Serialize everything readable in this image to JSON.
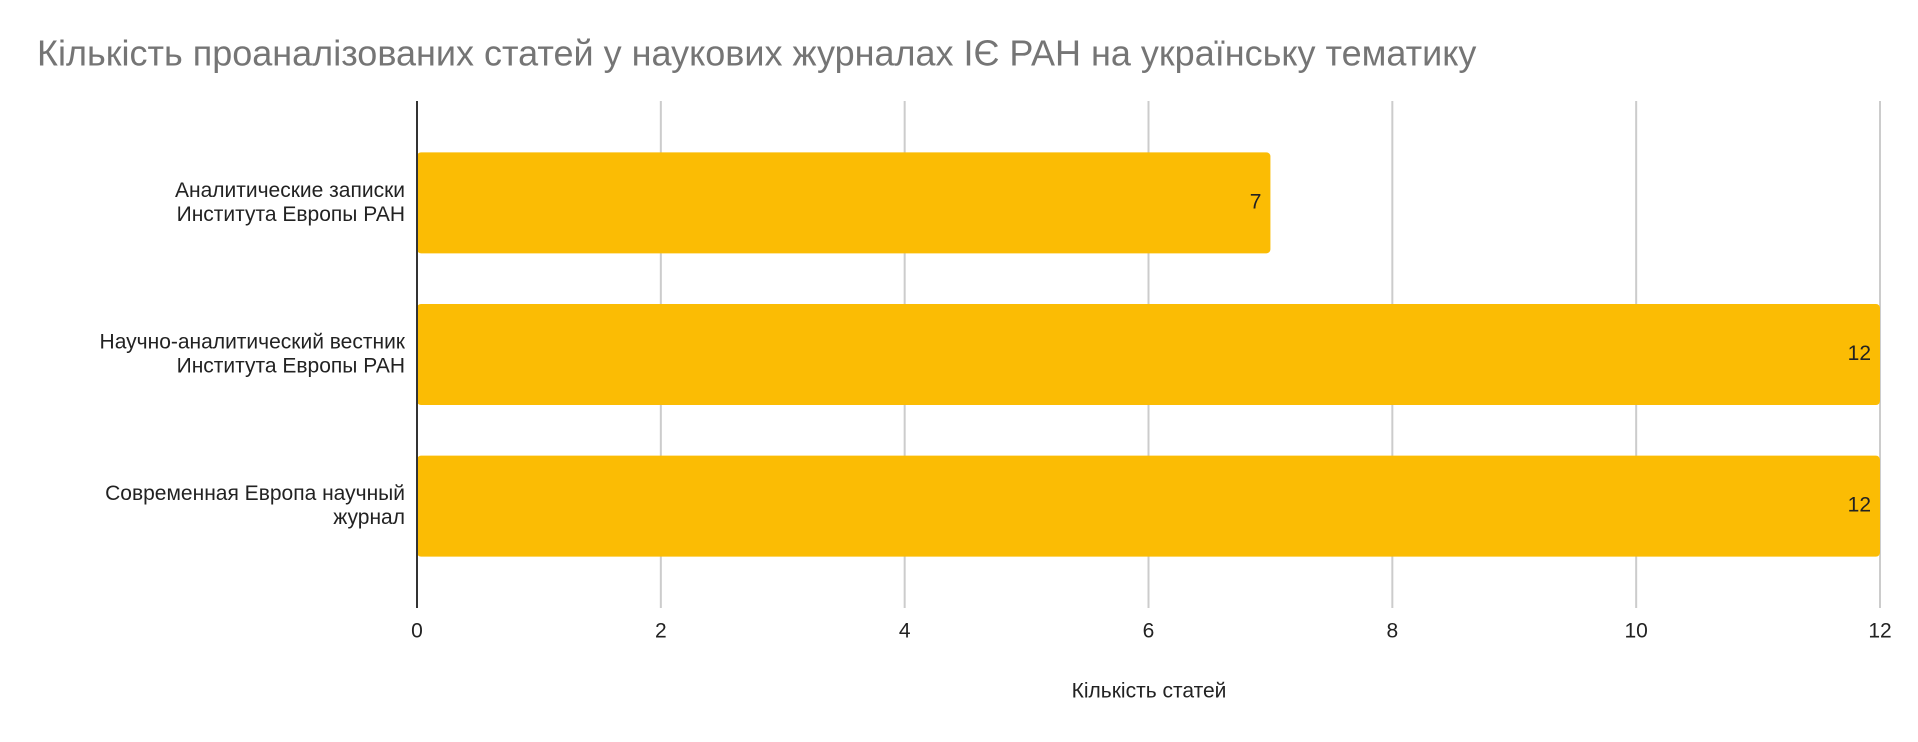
{
  "chart_data": {
    "type": "bar",
    "orientation": "horizontal",
    "title": "Кількість проаналізованих статей у наукових журналах ІЄ РАН на українську тематику",
    "x_label": "Кількість статей",
    "categories": [
      "Аналитические записки Института Европы РАН",
      "Научно-аналитический вестник Института Европы РАН",
      "Современная Европа научный журнал"
    ],
    "values": [
      7,
      12,
      12
    ],
    "color": "#fbbc04",
    "xlim": [
      0,
      12
    ],
    "xticks": [
      0,
      2,
      4,
      6,
      8,
      10,
      12
    ],
    "grid": true
  }
}
